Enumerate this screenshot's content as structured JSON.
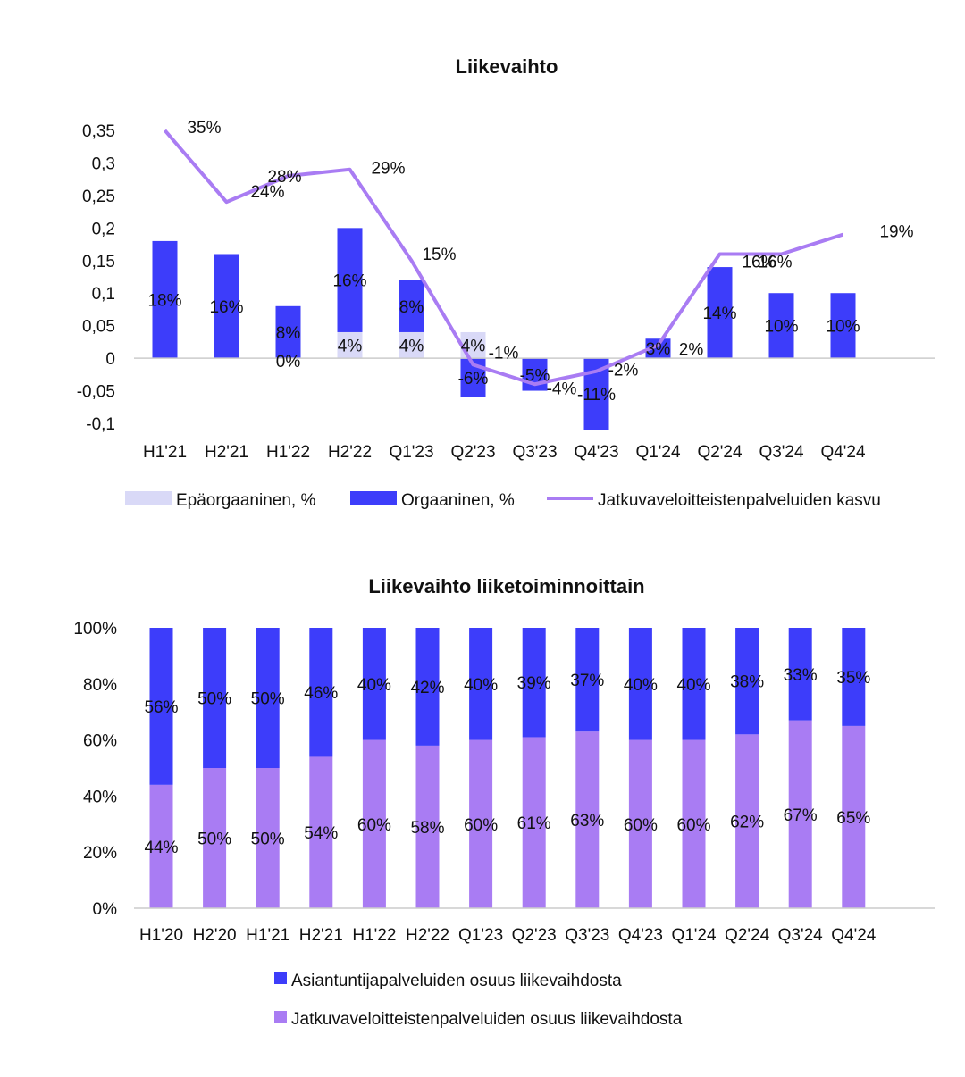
{
  "colors": {
    "organic": "#3d3dfa",
    "inorganic": "#d9d9f7",
    "line": "#a97cf3",
    "services": "#a97cf3",
    "expert": "#3d3dfa",
    "axis": "#cccccc"
  },
  "chart_data": [
    {
      "type": "bar+line",
      "title": "Liikevaihto",
      "categories": [
        "H1'21",
        "H2'21",
        "H1'22",
        "H2'22",
        "Q1'23",
        "Q2'23",
        "Q3'23",
        "Q4'23",
        "Q1'24",
        "Q2'24",
        "Q3'24",
        "Q4'24"
      ],
      "y_ticks": [
        "0,35",
        "0,3",
        "0,25",
        "0,2",
        "0,15",
        "0,1",
        "0,05",
        "0",
        "-0,05",
        "-0,1"
      ],
      "ylim": [
        -0.1,
        0.35
      ],
      "series": [
        {
          "name": "Epäorgaaninen, %",
          "kind": "bar",
          "values": [
            0,
            0,
            0,
            0.04,
            0.04,
            0.04,
            0,
            0,
            0,
            0,
            0,
            0
          ],
          "labels": [
            "",
            "",
            "0%",
            "4%",
            "4%",
            "4%",
            "",
            "",
            "",
            "",
            "",
            ""
          ]
        },
        {
          "name": "Orgaaninen, %",
          "kind": "bar",
          "values": [
            0.18,
            0.16,
            0.08,
            0.16,
            0.08,
            -0.06,
            -0.05,
            -0.11,
            0.03,
            0.14,
            0.1,
            0.1
          ],
          "labels": [
            "18%",
            "16%",
            "8%",
            "16%",
            "8%",
            "-6%",
            "-5%",
            "-11%",
            "3%",
            "14%",
            "10%",
            "10%"
          ]
        },
        {
          "name": "Jatkuvaveloitteistenpalveluiden kasvu",
          "kind": "line",
          "values": [
            0.35,
            0.24,
            0.28,
            0.29,
            0.15,
            -0.01,
            -0.04,
            -0.02,
            0.02,
            0.16,
            0.16,
            0.19
          ],
          "labels": [
            "35%",
            "24%",
            "28%",
            "29%",
            "15%",
            "-1%",
            "-4%",
            "-2%",
            "2%",
            "16%",
            "16%",
            "19%"
          ]
        }
      ]
    },
    {
      "type": "stacked-bar",
      "title": "Liikevaihto liiketoiminnoittain",
      "categories": [
        "H1'20",
        "H2'20",
        "H1'21",
        "H2'21",
        "H1'22",
        "H2'22",
        "Q1'23",
        "Q2'23",
        "Q3'23",
        "Q4'23",
        "Q1'24",
        "Q2'24",
        "Q3'24",
        "Q4'24"
      ],
      "y_ticks": [
        "100%",
        "80%",
        "60%",
        "40%",
        "20%",
        "0%"
      ],
      "ylim": [
        0,
        100
      ],
      "series": [
        {
          "name": "Jatkuvaveloitteistenpalveluiden osuus liikevaihdosta",
          "values": [
            44,
            50,
            50,
            54,
            60,
            58,
            60,
            61,
            63,
            60,
            60,
            62,
            67,
            65
          ],
          "labels": [
            "44%",
            "50%",
            "50%",
            "54%",
            "60%",
            "58%",
            "60%",
            "61%",
            "63%",
            "60%",
            "60%",
            "62%",
            "67%",
            "65%"
          ]
        },
        {
          "name": "Asiantuntijapalveluiden osuus liikevaihdosta",
          "values": [
            56,
            50,
            50,
            46,
            40,
            42,
            40,
            39,
            37,
            40,
            40,
            38,
            33,
            35
          ],
          "labels": [
            "56%",
            "50%",
            "50%",
            "46%",
            "40%",
            "42%",
            "40%",
            "39%",
            "37%",
            "40%",
            "40%",
            "38%",
            "33%",
            "35%"
          ]
        }
      ]
    }
  ]
}
